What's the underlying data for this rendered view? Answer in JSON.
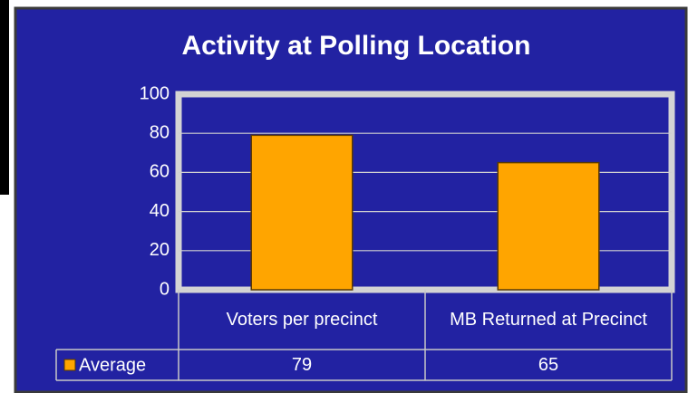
{
  "chart_data": {
    "type": "bar",
    "title": "Activity at Polling Location",
    "categories": [
      "Voters per precinct",
      "MB Returned at Precinct"
    ],
    "series": [
      {
        "name": "Average",
        "color": "#ffa500",
        "values": [
          79,
          65
        ]
      }
    ],
    "ylim": [
      0,
      100
    ],
    "yticks": [
      0,
      20,
      40,
      60,
      80,
      100
    ],
    "grid": true
  }
}
